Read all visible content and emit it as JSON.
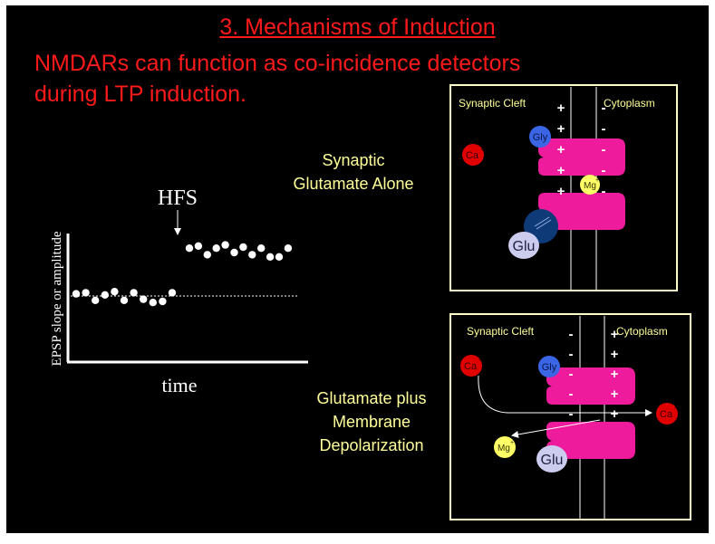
{
  "slide": {
    "title": "3. Mechanisms of Induction",
    "subtitle_line1": "NMDARs can function as co-incidence detectors",
    "subtitle_line2": "during LTP induction."
  },
  "colors": {
    "background": "#000000",
    "title": "#ff1a1a",
    "labels": "#ffff99",
    "panel_border": "#ffffcc",
    "receptor": "#ee1c9c",
    "calcium": "#e00000",
    "magnesium": "#ffff66",
    "glycine": "#3a66e6",
    "glutamate": "#ccccee",
    "glutamate_site": "#0e3a78"
  },
  "graph": {
    "y_label": "EPSP slope or amplitude",
    "x_label": "time",
    "event_label": "HFS",
    "baseline_y": [
      0.2,
      0.3,
      -0.4,
      0.1,
      0.4,
      -0.4,
      0.3,
      -0.3,
      -0.6,
      -0.5,
      0.3
    ],
    "post_hfs_y": [
      4.4,
      4.6,
      3.8,
      4.4,
      4.7,
      4.0,
      4.5,
      3.8,
      4.4,
      3.6,
      3.6,
      4.4
    ]
  },
  "condition1": {
    "label_line1": "Synaptic",
    "label_line2": "Glutamate Alone",
    "left_label": "Synaptic Cleft",
    "right_label": "Cytoplasm",
    "ion_ca": "Ca",
    "ion_mg": "Mg",
    "charge_plus": "+",
    "mol_gly": "Gly",
    "mol_glu": "Glu",
    "left_side_charges": [
      "+",
      "+",
      "+",
      "+",
      "+"
    ],
    "right_side_charges": [
      "-",
      "-",
      "-",
      "-",
      "-"
    ]
  },
  "condition2": {
    "label_line1": "Glutamate plus",
    "label_line2": "Membrane",
    "label_line3": "Depolarization",
    "left_label": "Synaptic Cleft",
    "right_label": "Cytoplasm",
    "ion_ca_left": "Ca",
    "ion_ca_right": "Ca",
    "ion_mg": "Mg",
    "charge_plus": "+",
    "mol_gly": "Gly",
    "mol_glu": "Glu",
    "left_side_charges": [
      "-",
      "-",
      "-",
      "-",
      "-"
    ],
    "right_side_charges": [
      "+",
      "+",
      "+",
      "+",
      "+"
    ]
  }
}
